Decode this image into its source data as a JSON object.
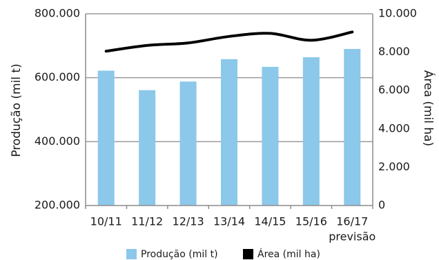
{
  "chart_data": {
    "type": "bar",
    "categories": [
      "10/11",
      "11/12",
      "12/13",
      "13/14",
      "14/15",
      "15/16",
      "16/17"
    ],
    "category_sublabels": [
      "",
      "",
      "",
      "",
      "",
      "",
      "previsão"
    ],
    "series": [
      {
        "name": "Produção (mil t)",
        "type": "bar",
        "axis": "left",
        "color": "#8cc8ea",
        "values": [
          622000,
          561000,
          588000,
          658000,
          634000,
          664000,
          690000
        ]
      },
      {
        "name": "Área (mil ha)",
        "type": "line",
        "axis": "right",
        "color": "#000000",
        "values": [
          8050,
          8350,
          8480,
          8820,
          8980,
          8620,
          9050
        ]
      }
    ],
    "y_left": {
      "label": "Produção (mil t)",
      "min": 200000,
      "max": 800000,
      "ticks": [
        200000,
        400000,
        600000,
        800000
      ],
      "tick_labels": [
        "200.000",
        "400.000",
        "600.000",
        "800.000"
      ]
    },
    "y_right": {
      "label": "Área (mil ha)",
      "min": 0,
      "max": 10000,
      "ticks": [
        0,
        2000,
        4000,
        6000,
        8000,
        10000
      ],
      "tick_labels": [
        "0",
        "2.000",
        "4.000",
        "6.000",
        "8.000",
        "10.000"
      ]
    },
    "grid": "horizontal",
    "legend_position": "bottom",
    "colors": {
      "axis": "#8c8c8c",
      "grid": "#9a9a9a"
    }
  }
}
